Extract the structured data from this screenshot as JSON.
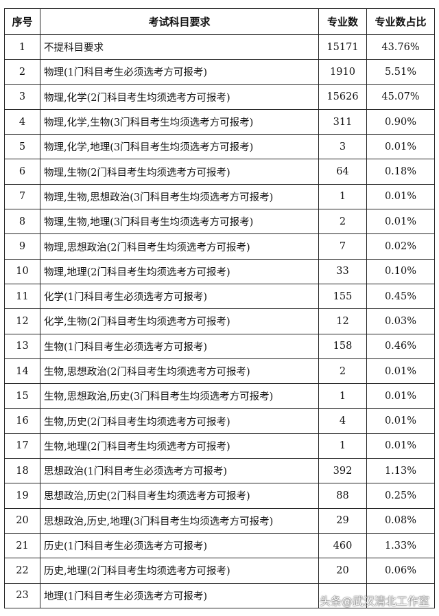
{
  "table": {
    "headers": [
      "序号",
      "考试科目要求",
      "专业数",
      "专业数占比"
    ],
    "rows": [
      {
        "idx": "1",
        "req": "不提科目要求",
        "count": "15171",
        "pct": "43.76%"
      },
      {
        "idx": "2",
        "req": "物理(1门科目考生必须选考方可报考)",
        "count": "1910",
        "pct": "5.51%"
      },
      {
        "idx": "3",
        "req": "物理,化学(2门科目考生均须选考方可报考)",
        "count": "15626",
        "pct": "45.07%"
      },
      {
        "idx": "4",
        "req": "物理,化学,生物(3门科目考生均须选考方可报考)",
        "count": "311",
        "pct": "0.90%"
      },
      {
        "idx": "5",
        "req": "物理,化学,地理(3门科目考生均须选考方可报考)",
        "count": "3",
        "pct": "0.01%"
      },
      {
        "idx": "6",
        "req": "物理,生物(2门科目考生均须选考方可报考)",
        "count": "64",
        "pct": "0.18%"
      },
      {
        "idx": "7",
        "req": "物理,生物,思想政治(3门科目考生均须选考方可报考)",
        "count": "1",
        "pct": "0.01%"
      },
      {
        "idx": "8",
        "req": "物理,生物,地理(3门科目考生均须选考方可报考)",
        "count": "2",
        "pct": "0.01%"
      },
      {
        "idx": "9",
        "req": "物理,思想政治(2门科目考生均须选考方可报考)",
        "count": "7",
        "pct": "0.02%"
      },
      {
        "idx": "10",
        "req": "物理,地理(2门科目考生均须选考方可报考)",
        "count": "33",
        "pct": "0.10%"
      },
      {
        "idx": "11",
        "req": "化学(1门科目考生必须选考方可报考)",
        "count": "155",
        "pct": "0.45%"
      },
      {
        "idx": "12",
        "req": "化学,生物(2门科目考生均须选考方可报考)",
        "count": "12",
        "pct": "0.03%"
      },
      {
        "idx": "13",
        "req": "生物(1门科目考生必须选考方可报考)",
        "count": "158",
        "pct": "0.46%"
      },
      {
        "idx": "14",
        "req": "生物,思想政治(2门科目考生均须选考方可报考)",
        "count": "2",
        "pct": "0.01%"
      },
      {
        "idx": "15",
        "req": "生物,思想政治,历史(3门科目考生均须选考方可报考)",
        "count": "1",
        "pct": "0.01%"
      },
      {
        "idx": "16",
        "req": "生物,历史(2门科目考生均须选考方可报考)",
        "count": "4",
        "pct": "0.01%"
      },
      {
        "idx": "17",
        "req": "生物,地理(2门科目考生均须选考方可报考)",
        "count": "1",
        "pct": "0.01%"
      },
      {
        "idx": "18",
        "req": "思想政治(1门科目考生必须选考方可报考)",
        "count": "392",
        "pct": "1.13%"
      },
      {
        "idx": "19",
        "req": "思想政治,历史(2门科目考生均须选考方可报考)",
        "count": "88",
        "pct": "0.25%"
      },
      {
        "idx": "20",
        "req": "思想政治,历史,地理(3门科目考生均须选考方可报考)",
        "count": "29",
        "pct": "0.08%"
      },
      {
        "idx": "21",
        "req": "历史(1门科目考生必须选考方可报考)",
        "count": "460",
        "pct": "1.33%"
      },
      {
        "idx": "22",
        "req": "历史,地理(2门科目考生均须选考方可报考)",
        "count": "20",
        "pct": "0.06%"
      },
      {
        "idx": "23",
        "req": "地理(1门科目考生必须选考方可报考)",
        "count": "",
        "pct": ""
      }
    ]
  },
  "watermark": "头条@武汉清北工作室"
}
